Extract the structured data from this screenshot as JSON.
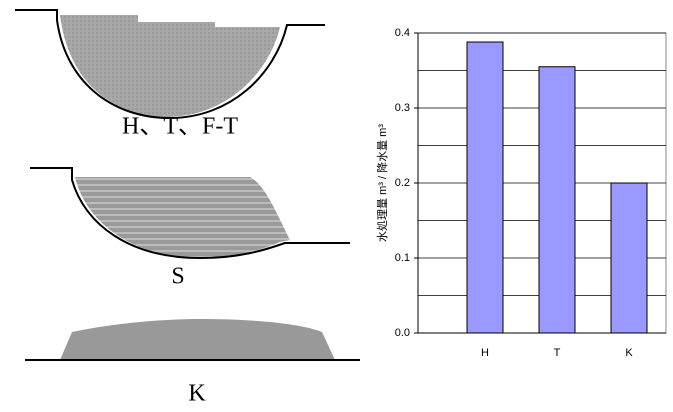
{
  "diagrams": [
    {
      "label": "H、T、F-T"
    },
    {
      "label": "S"
    },
    {
      "label": "K"
    }
  ],
  "chart_data": {
    "type": "bar",
    "y_label": "水処理量 m³ / 降水量 m³",
    "categories": [
      "H",
      "T",
      "K"
    ],
    "values": [
      0.388,
      0.355,
      0.2
    ],
    "color": "#9999ff",
    "ylim": [
      0,
      0.4
    ],
    "yticks": [
      {
        "value": 0,
        "label": "0.0"
      },
      0.1,
      0.2,
      0.3,
      0.4
    ],
    "minor_yticks": [
      0.05,
      0.15,
      0.25,
      0.35
    ],
    "grid": true
  }
}
